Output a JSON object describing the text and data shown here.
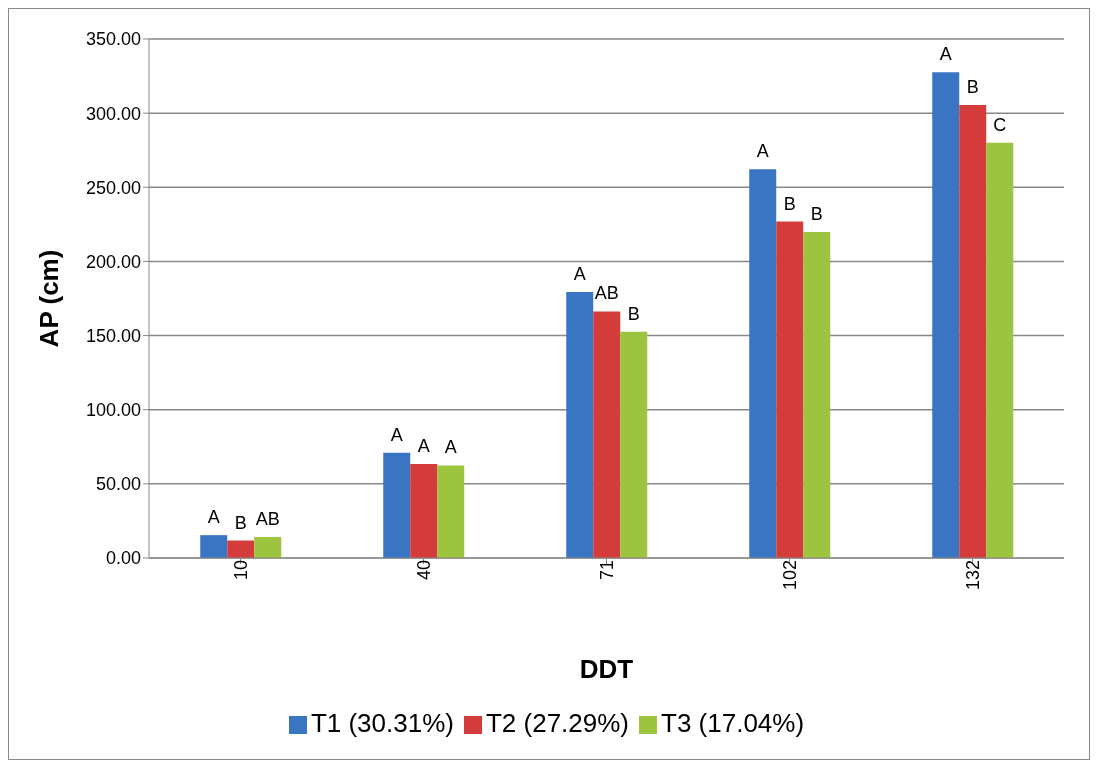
{
  "chart_data": {
    "type": "bar",
    "xlabel": "DDT",
    "ylabel": "AP (cm)",
    "categories": [
      "10",
      "40",
      "71",
      "102",
      "132"
    ],
    "series": [
      {
        "name": "T1 (30.31%)",
        "color": "#3a75c4",
        "values": [
          15.4,
          71.0,
          179.4,
          262.1,
          327.5
        ],
        "value_labels": [
          "A",
          "A",
          "A",
          "A",
          "A"
        ]
      },
      {
        "name": "T2 (27.29%)",
        "color": "#d43c3c",
        "values": [
          11.8,
          63.4,
          166.3,
          226.9,
          305.5
        ],
        "value_labels": [
          "B",
          "A",
          "AB",
          "B",
          "B"
        ]
      },
      {
        "name": "T3 (17.04%)",
        "color": "#9cc43e",
        "values": [
          14.1,
          62.4,
          152.6,
          219.9,
          280.1
        ],
        "value_labels": [
          "AB",
          "A",
          "B",
          "B",
          "C"
        ]
      }
    ],
    "ylim": [
      0,
      350
    ],
    "yticks": [
      {
        "value": 0,
        "label": "0.00"
      },
      {
        "value": 50,
        "label": "50.00"
      },
      {
        "value": 100,
        "label": "100.00"
      },
      {
        "value": 150,
        "label": "150.00"
      },
      {
        "value": 200,
        "label": "200.00"
      },
      {
        "value": 250,
        "label": "250.00"
      },
      {
        "value": 300,
        "label": "300.00"
      },
      {
        "value": 350,
        "label": "350.00"
      }
    ],
    "grid": "y",
    "legend": "bottom"
  }
}
